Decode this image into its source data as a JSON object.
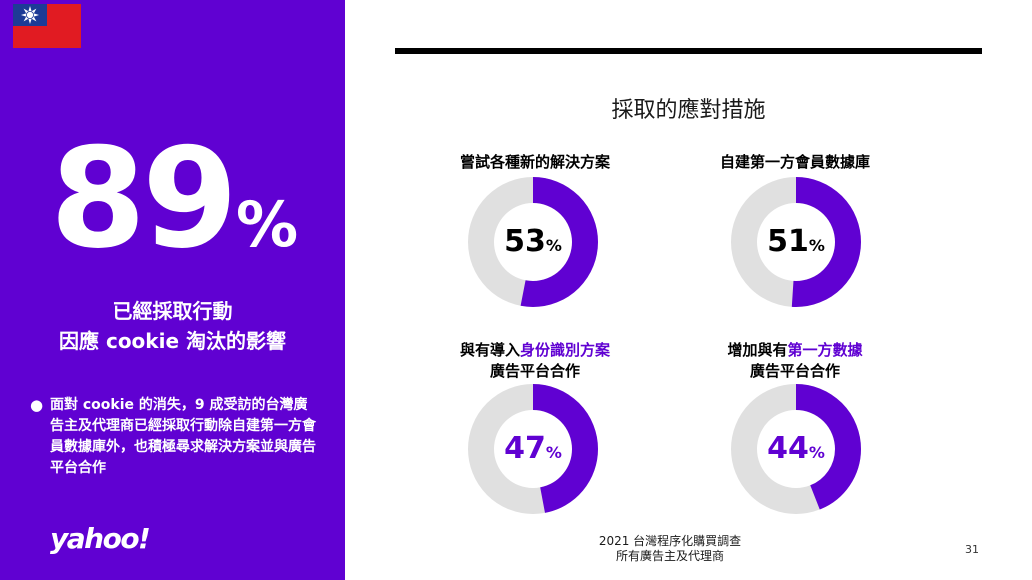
{
  "left": {
    "big_number": "89",
    "big_unit": "%",
    "headline_line1": "已經採取行動",
    "headline_line2": "因應 cookie 淘汰的影響",
    "bullet_symbol": "●",
    "bullet_text": "面對 cookie 的消失，9 成受訪的台灣廣告主及代理商已經採取行動除自建第一方會員數據庫外，也積極尋求解決方案並與廣告平台合作",
    "logo_text": "yahoo!",
    "panel_color": "#6001d2"
  },
  "right": {
    "section_title": "採取的應對措施",
    "accent_color": "#6001d2",
    "track_color": "#e0e0e0",
    "metrics": [
      {
        "label": "嘗試各種新的解決方案",
        "value": 53,
        "unit": "%"
      },
      {
        "label": "自建第一方會員數據庫",
        "value": 51,
        "unit": "%"
      },
      {
        "label_pre": "與有導入",
        "label_hl": "身份識別方案",
        "label_line2": "廣告平台合作",
        "value": 47,
        "unit": "%"
      },
      {
        "label_pre": "增加與有",
        "label_hl": "第一方數據",
        "label_line2": "廣告平台合作",
        "value": 44,
        "unit": "%"
      }
    ]
  },
  "footer": {
    "line1": "2021 台灣程序化購買調查",
    "line2": "所有廣告主及代理商",
    "page_number": "31"
  }
}
